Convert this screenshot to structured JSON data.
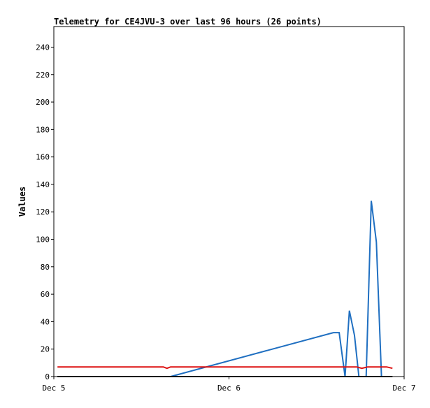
{
  "chart_data": {
    "type": "line",
    "title": "Telemetry for CE4JVU-3 over last 96 hours (26 points)",
    "xlabel": "",
    "ylabel": "Values",
    "xlim_hours": [
      0,
      48
    ],
    "ylim": [
      0,
      255
    ],
    "grid": false,
    "legend": "none",
    "x_ticks": [
      {
        "hours": 0,
        "label": "Dec 5"
      },
      {
        "hours": 24,
        "label": "Dec 6"
      },
      {
        "hours": 48,
        "label": "Dec 7"
      }
    ],
    "y_ticks": [
      0,
      20,
      40,
      60,
      80,
      100,
      120,
      140,
      160,
      180,
      200,
      220,
      240
    ],
    "series": [
      {
        "color": "#1f6fc1",
        "hours": [
          16.0,
          38.3,
          39.1,
          39.9,
          40.5,
          41.2,
          41.8,
          42.8,
          43.5,
          44.2
        ],
        "values": [
          0,
          32,
          32,
          0,
          48,
          30,
          0,
          0,
          128,
          98
        ]
      },
      {
        "color": "#1f6fc1",
        "hours": [
          44.2,
          44.9
        ],
        "values": [
          98,
          0
        ]
      },
      {
        "color": "#dd1111",
        "hours": [
          0.5,
          15.0,
          15.5,
          16.0,
          41.5,
          42.2,
          43.0,
          45.0,
          45.6,
          46.4
        ],
        "values": [
          7,
          7,
          6,
          7,
          7,
          6,
          7,
          7,
          7,
          6
        ]
      },
      {
        "color": "#000000",
        "hours": [
          0.5,
          46.4
        ],
        "values": [
          0,
          0
        ]
      }
    ]
  }
}
